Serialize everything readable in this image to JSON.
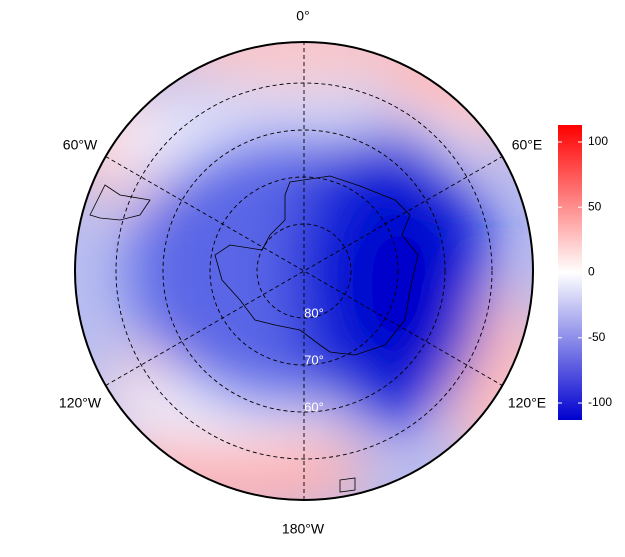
{
  "map": {
    "longitude_labels": [
      "0°",
      "60°E",
      "120°E",
      "180°W",
      "120°W",
      "60°W"
    ],
    "latitude_labels": [
      "80°",
      "70°",
      "60°"
    ],
    "colorbar": {
      "lim": [
        -113,
        113
      ],
      "ticks": [
        100,
        50,
        0,
        -50,
        -100
      ],
      "colors": [
        "#0000d0",
        "#ffffff",
        "#ff0000"
      ]
    }
  }
}
